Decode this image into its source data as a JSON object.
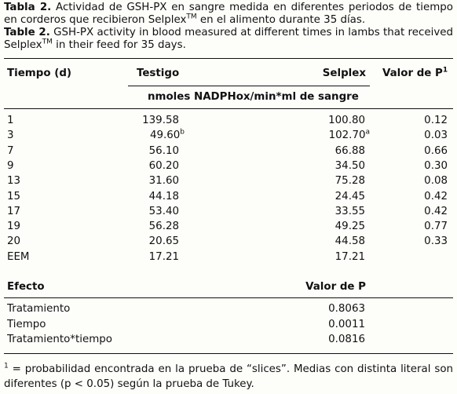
{
  "caption_es": {
    "label": "Tabla 2.",
    "text": " Actividad de GSH-PX en sangre medida en diferentes periodos de tiempo en corderos que recibieron Selplex",
    "tm": "TM",
    "text2": " en el alimento durante 35 días."
  },
  "caption_en": {
    "label": "Table 2.",
    "text": " GSH-PX activity in blood measured at different times in lambs that received Selplex",
    "tm": "TM",
    "text2": " in their feed for 35 days."
  },
  "headers": {
    "tiempo": "Tiempo (d)",
    "testigo": "Testigo",
    "selplex": "Selplex",
    "valor_p": "Valor de P",
    "valor_p_sup": "1",
    "units": "nmoles NADPHox/min*ml de sangre"
  },
  "rows": [
    {
      "t": "1",
      "testigo": "139.58",
      "testigo_sup": "",
      "selplex": "100.80",
      "selplex_sup": "",
      "p": "0.12"
    },
    {
      "t": "3",
      "testigo": "49.60",
      "testigo_sup": "b",
      "selplex": "102.70",
      "selplex_sup": "a",
      "p": "0.03"
    },
    {
      "t": "7",
      "testigo": "56.10",
      "testigo_sup": "",
      "selplex": "66.88",
      "selplex_sup": "",
      "p": "0.66"
    },
    {
      "t": "9",
      "testigo": "60.20",
      "testigo_sup": "",
      "selplex": "34.50",
      "selplex_sup": "",
      "p": "0.30"
    },
    {
      "t": "13",
      "testigo": "31.60",
      "testigo_sup": "",
      "selplex": "75.28",
      "selplex_sup": "",
      "p": "0.08"
    },
    {
      "t": "15",
      "testigo": "44.18",
      "testigo_sup": "",
      "selplex": "24.45",
      "selplex_sup": "",
      "p": "0.42"
    },
    {
      "t": "17",
      "testigo": "53.40",
      "testigo_sup": "",
      "selplex": "33.55",
      "selplex_sup": "",
      "p": "0.42"
    },
    {
      "t": "19",
      "testigo": "56.28",
      "testigo_sup": "",
      "selplex": "49.25",
      "selplex_sup": "",
      "p": "0.77"
    },
    {
      "t": "20",
      "testigo": "20.65",
      "testigo_sup": "",
      "selplex": "44.58",
      "selplex_sup": "",
      "p": "0.33"
    },
    {
      "t": "EEM",
      "testigo": "17.21",
      "testigo_sup": "",
      "selplex": "17.21",
      "selplex_sup": "",
      "p": ""
    }
  ],
  "effects_header": {
    "efecto": "Efecto",
    "valor_p": "Valor de P"
  },
  "effects": [
    {
      "name": "Tratamiento",
      "p": "0.8063"
    },
    {
      "name": "Tiempo",
      "p": "0.0011"
    },
    {
      "name": "Tratamiento*tiempo",
      "p": "0.0816"
    }
  ],
  "footnote": {
    "mark": "1",
    "text": " = probabilidad encontrada en la prueba de “slices”. Medias con distinta literal son diferentes (p < 0.05) según la prueba de Tukey."
  }
}
